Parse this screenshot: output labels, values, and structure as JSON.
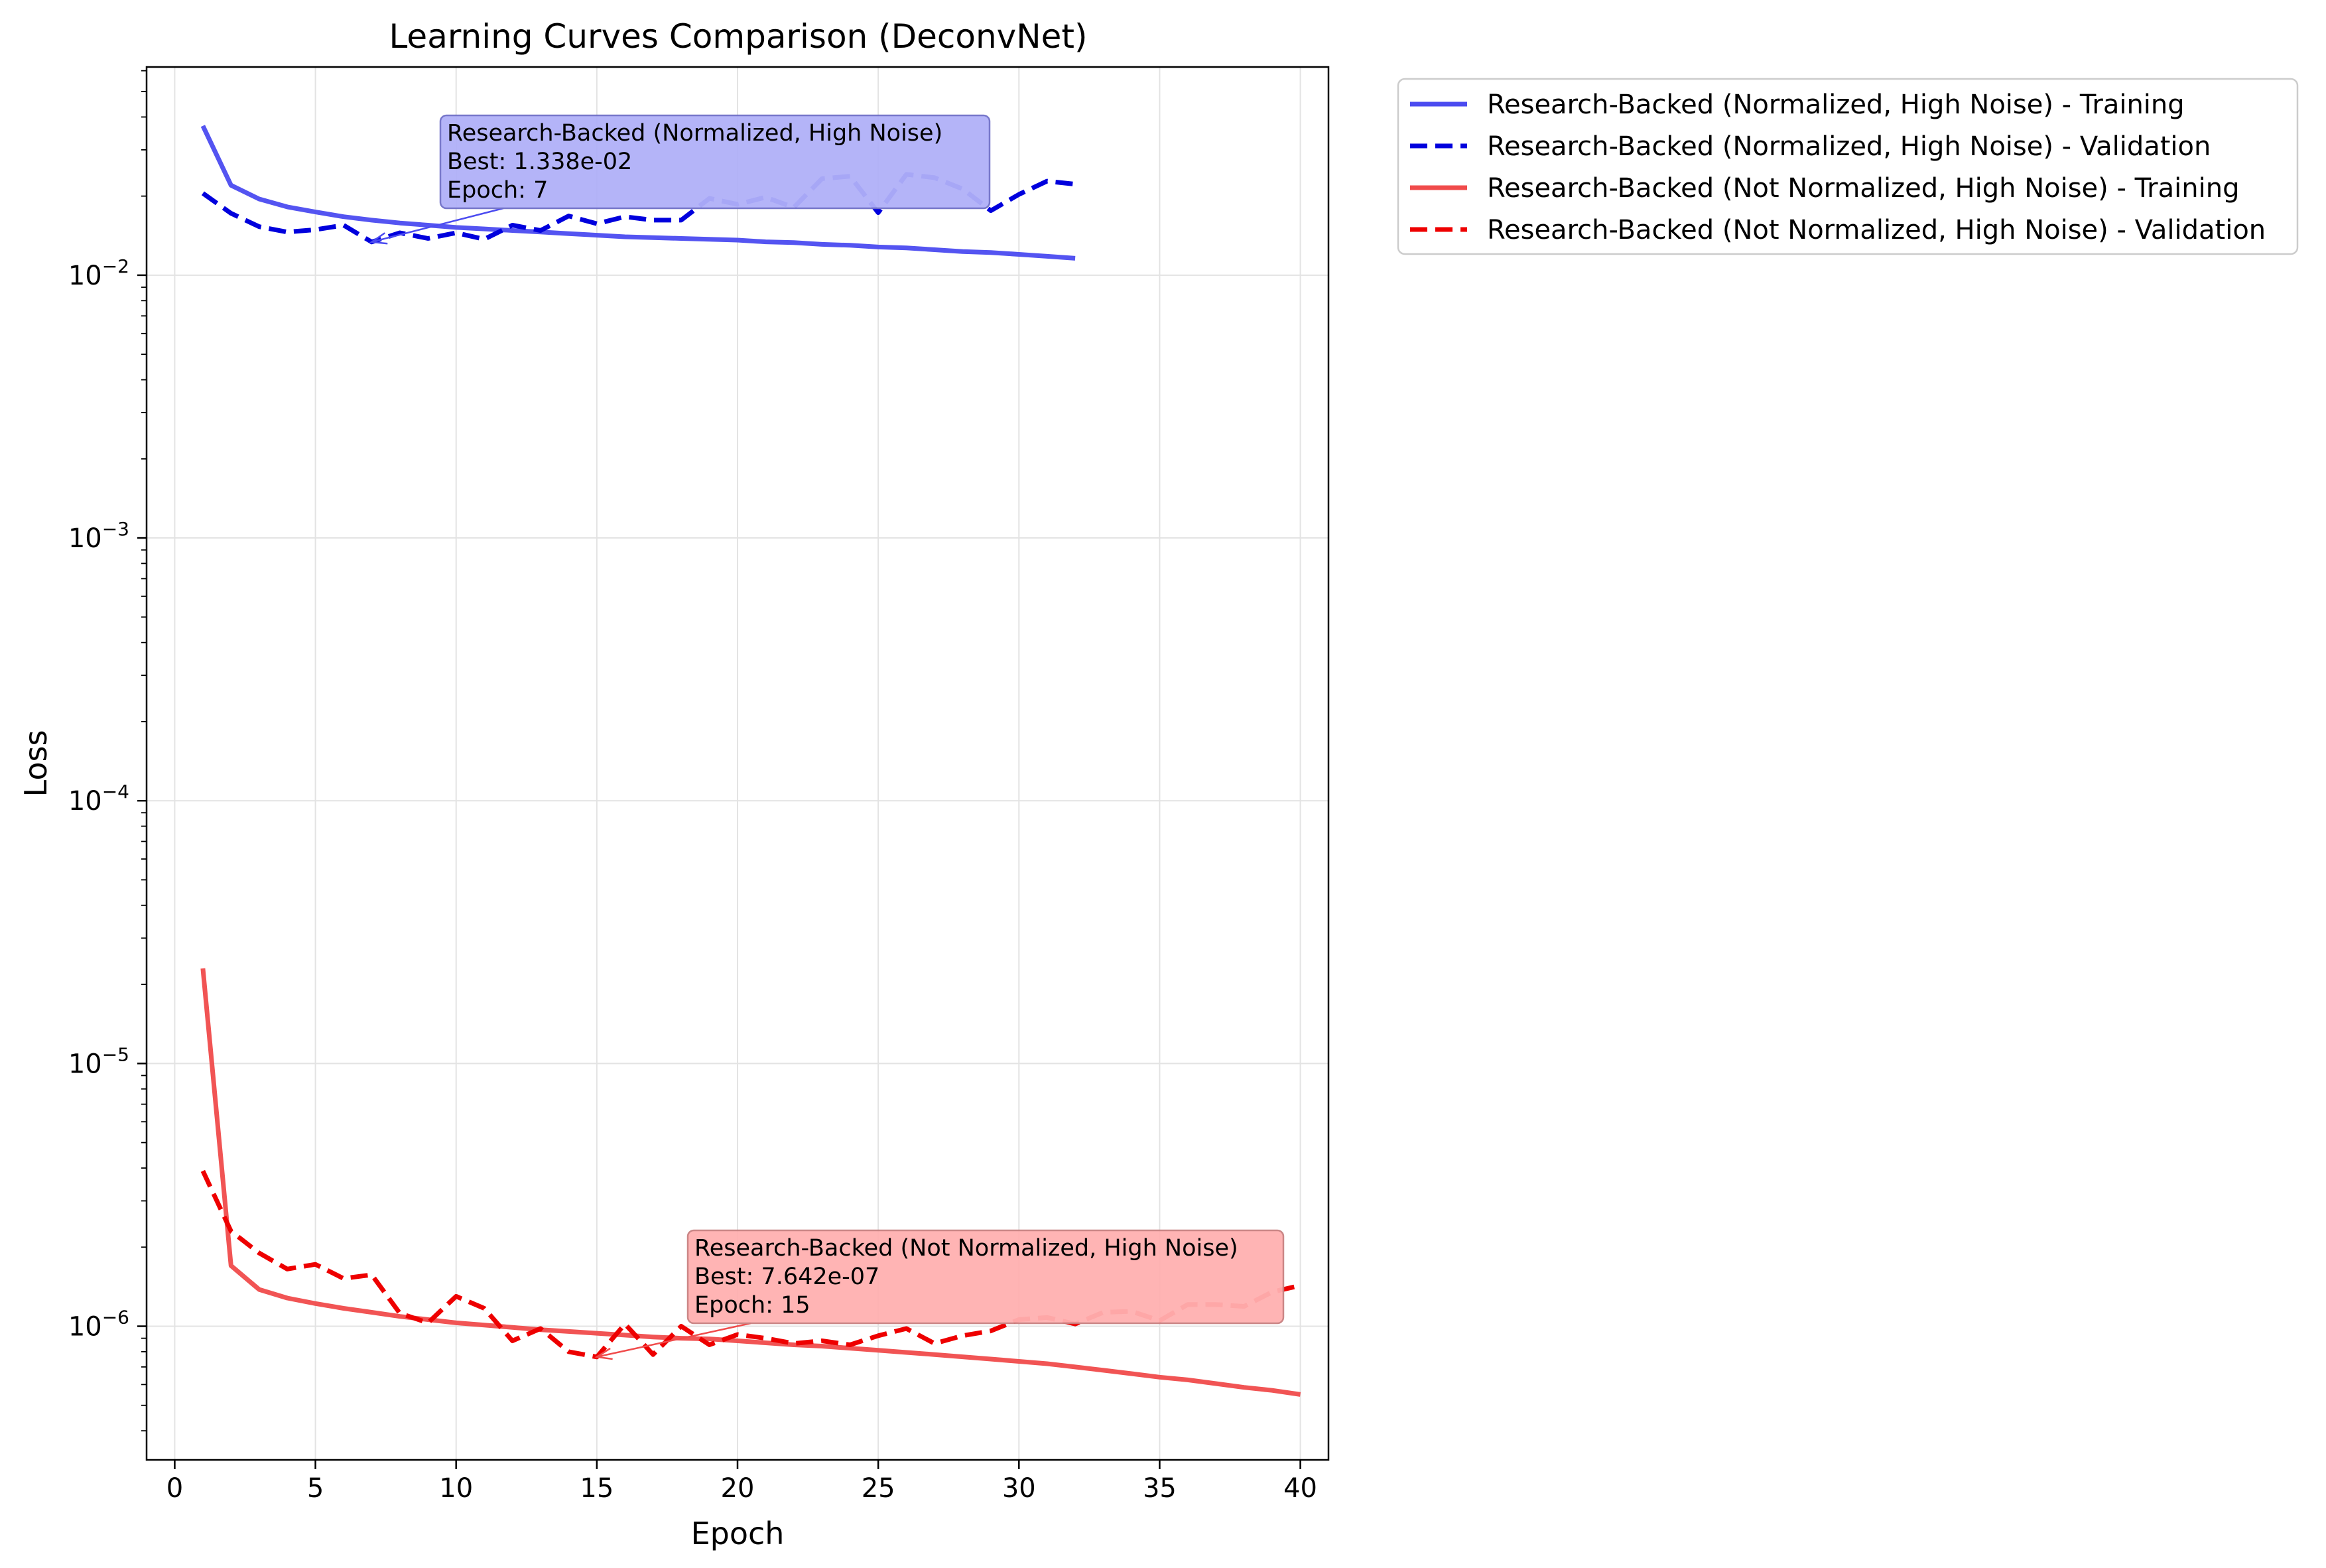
{
  "chart_data": {
    "type": "line",
    "title": "Learning Curves Comparison (DeconvNet)",
    "xlabel": "Epoch",
    "ylabel": "Loss",
    "xlim": [
      -1,
      41
    ],
    "ylim": [
      3.1e-07,
      0.062
    ],
    "y_scale": "log",
    "x_ticks": [
      0,
      5,
      10,
      15,
      20,
      25,
      30,
      35,
      40
    ],
    "y_ticks": [
      {
        "value": 1e-06,
        "label": "10",
        "exp": "−6"
      },
      {
        "value": 1e-05,
        "label": "10",
        "exp": "−5"
      },
      {
        "value": 0.0001,
        "label": "10",
        "exp": "−4"
      },
      {
        "value": 0.001,
        "label": "10",
        "exp": "−3"
      },
      {
        "value": 0.01,
        "label": "10",
        "exp": "−2"
      }
    ],
    "grid": true,
    "legend_position": "outside right, top",
    "series": [
      {
        "name": "Research-Backed (Normalized, High Noise) - Training",
        "color": "#4b4bf0",
        "dash": "solid",
        "x": [
          1,
          2,
          3,
          4,
          5,
          6,
          7,
          8,
          9,
          10,
          11,
          12,
          13,
          14,
          15,
          16,
          17,
          18,
          19,
          20,
          21,
          22,
          23,
          24,
          25,
          26,
          27,
          28,
          29,
          30,
          31,
          32
        ],
        "y": [
          0.037,
          0.022,
          0.0195,
          0.0182,
          0.0174,
          0.0167,
          0.0162,
          0.0158,
          0.0155,
          0.0152,
          0.015,
          0.0148,
          0.0146,
          0.0144,
          0.0142,
          0.014,
          0.0139,
          0.0138,
          0.0137,
          0.0136,
          0.0134,
          0.0133,
          0.0131,
          0.013,
          0.0128,
          0.0127,
          0.0125,
          0.0123,
          0.0122,
          0.012,
          0.0118,
          0.0116
        ]
      },
      {
        "name": "Research-Backed (Normalized, High Noise) - Validation",
        "color": "#0000dd",
        "dash": "dashed",
        "x": [
          1,
          2,
          3,
          4,
          5,
          6,
          7,
          8,
          9,
          10,
          11,
          12,
          13,
          14,
          15,
          16,
          17,
          18,
          19,
          20,
          21,
          22,
          23,
          24,
          25,
          26,
          27,
          28,
          29,
          30,
          31,
          32
        ],
        "y": [
          0.0205,
          0.0172,
          0.0153,
          0.0146,
          0.0149,
          0.0155,
          0.01338,
          0.0145,
          0.0138,
          0.0145,
          0.0137,
          0.0155,
          0.0148,
          0.0168,
          0.0157,
          0.0167,
          0.0162,
          0.0162,
          0.0196,
          0.0186,
          0.0198,
          0.0181,
          0.0233,
          0.0238,
          0.0173,
          0.0242,
          0.0235,
          0.0213,
          0.0176,
          0.0203,
          0.0228,
          0.0222
        ]
      },
      {
        "name": "Research-Backed (Not Normalized, High Noise) - Training",
        "color": "#f04b4b",
        "dash": "solid",
        "x": [
          1,
          2,
          3,
          4,
          5,
          6,
          7,
          8,
          9,
          10,
          11,
          12,
          13,
          14,
          15,
          16,
          17,
          18,
          19,
          20,
          21,
          22,
          23,
          24,
          25,
          26,
          27,
          28,
          29,
          30,
          31,
          32,
          33,
          34,
          35,
          36,
          37,
          38,
          39,
          40
        ],
        "y": [
          2.3e-05,
          1.7e-06,
          1.38e-06,
          1.28e-06,
          1.22e-06,
          1.17e-06,
          1.13e-06,
          1.09e-06,
          1.06e-06,
          1.03e-06,
          1.01e-06,
          9.9e-07,
          9.7e-07,
          9.55e-07,
          9.4e-07,
          9.25e-07,
          9.1e-07,
          9e-07,
          8.95e-07,
          8.8e-07,
          8.65e-07,
          8.5e-07,
          8.4e-07,
          8.25e-07,
          8.1e-07,
          7.95e-07,
          7.8e-07,
          7.65e-07,
          7.5e-07,
          7.35e-07,
          7.2e-07,
          7e-07,
          6.8e-07,
          6.6e-07,
          6.4e-07,
          6.25e-07,
          6.05e-07,
          5.85e-07,
          5.7e-07,
          5.5e-07
        ]
      },
      {
        "name": "Research-Backed (Not Normalized, High Noise) - Validation",
        "color": "#ee0000",
        "dash": "dashed",
        "x": [
          1,
          2,
          3,
          4,
          5,
          6,
          7,
          8,
          9,
          10,
          11,
          12,
          13,
          14,
          15,
          16,
          17,
          18,
          19,
          20,
          21,
          22,
          23,
          24,
          25,
          26,
          27,
          28,
          29,
          30,
          31,
          32,
          33,
          34,
          35,
          36,
          37,
          38,
          39,
          40
        ],
        "y": [
          3.9e-06,
          2.3e-06,
          1.9e-06,
          1.65e-06,
          1.72e-06,
          1.52e-06,
          1.57e-06,
          1.12e-06,
          1.03e-06,
          1.3e-06,
          1.17e-06,
          8.8e-07,
          9.8e-07,
          8e-07,
          7.642e-07,
          1.02e-06,
          7.8e-07,
          1e-06,
          8.5e-07,
          9.3e-07,
          9e-07,
          8.6e-07,
          8.8e-07,
          8.5e-07,
          9.2e-07,
          9.8e-07,
          8.6e-07,
          9.2e-07,
          9.6e-07,
          1.06e-06,
          1.08e-06,
          1.02e-06,
          1.13e-06,
          1.14e-06,
          1.05e-06,
          1.21e-06,
          1.21e-06,
          1.19e-06,
          1.35e-06,
          1.43e-06
        ]
      }
    ],
    "annotations": [
      {
        "lines": [
          "Research-Backed (Normalized, High Noise)",
          "Best: 1.338e-02",
          "Epoch: 7"
        ],
        "arrow_to": {
          "x": 7,
          "y": 0.01338
        },
        "box_color": "#b0b0f8",
        "border_color": "#7070c8",
        "arrow_color": "#4b4bf0"
      },
      {
        "lines": [
          "Research-Backed (Not Normalized, High Noise)",
          "Best: 7.642e-07",
          "Epoch: 15"
        ],
        "arrow_to": {
          "x": 15,
          "y": 7.642e-07
        },
        "box_color": "#ffb0b0",
        "border_color": "#c88080",
        "arrow_color": "#f04b4b"
      }
    ]
  }
}
